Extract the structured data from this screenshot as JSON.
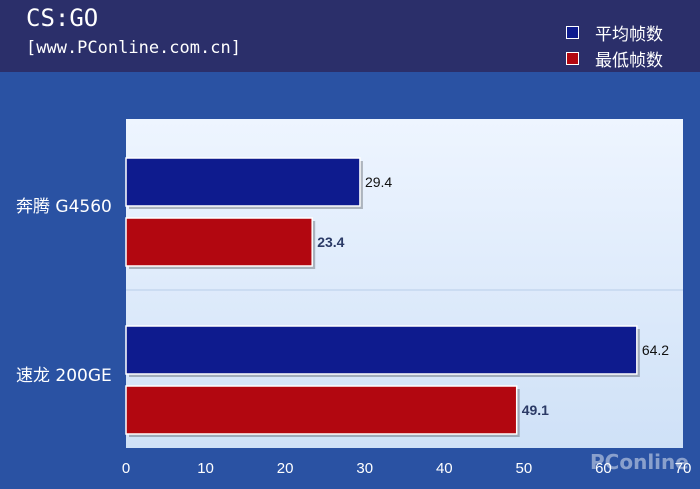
{
  "header": {
    "title": "CS:GO",
    "subtitle": "[www.PConline.com.cn]"
  },
  "colors": {
    "background": "#2a52a3",
    "header": "#2b2f6a",
    "avg": "#0e1b8e",
    "min": "#b20710"
  },
  "chart_data": {
    "type": "bar",
    "orientation": "horizontal",
    "categories": [
      "奔腾 G4560",
      "速龙 200GE"
    ],
    "series": [
      {
        "name": "平均帧数",
        "values": [
          29.4,
          64.2
        ]
      },
      {
        "name": "最低帧数",
        "values": [
          23.4,
          49.1
        ]
      }
    ],
    "xlim": [
      0,
      70
    ],
    "x_ticks": [
      0,
      10,
      20,
      30,
      40,
      50,
      60,
      70
    ],
    "legend": "top-right",
    "grid": false
  },
  "watermark": "PConline"
}
